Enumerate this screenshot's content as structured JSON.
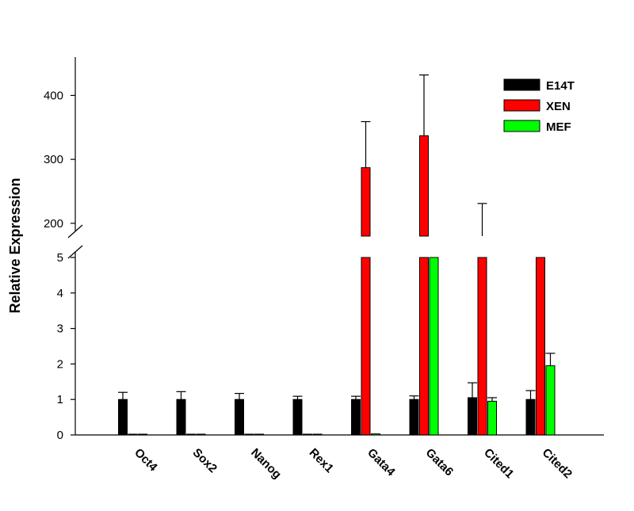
{
  "chart_data": {
    "type": "bar",
    "ylabel": "Relative Expression",
    "xlabel": "",
    "categories": [
      "Oct4",
      "Sox2",
      "Nanog",
      "Rex1",
      "Gata4",
      "Gata6",
      "Cited1",
      "Cited2"
    ],
    "y_axis_break": {
      "lower_range": [
        0,
        5
      ],
      "upper_range": [
        180,
        460
      ]
    },
    "y_ticks_lower": [
      "0",
      "1",
      "2",
      "3",
      "4",
      "5"
    ],
    "y_ticks_upper": [
      "200",
      "300",
      "400"
    ],
    "series": [
      {
        "name": "E14T",
        "color": "#000000",
        "values": [
          1.0,
          1.0,
          1.0,
          1.0,
          1.0,
          1.0,
          1.05,
          1.0
        ],
        "errors": [
          0.2,
          0.22,
          0.17,
          0.09,
          0.09,
          0.1,
          0.42,
          0.25
        ]
      },
      {
        "name": "XEN",
        "color": "#ff0000",
        "values": [
          0.02,
          0.02,
          0.02,
          0.02,
          287,
          337,
          175,
          120
        ],
        "errors": [
          0,
          0,
          0,
          0,
          72,
          95,
          56,
          0
        ]
      },
      {
        "name": "MEF",
        "color": "#00ff00",
        "values": [
          0.02,
          0.02,
          0.02,
          0.02,
          0.03,
          5,
          0.95,
          1.95
        ],
        "errors": [
          0,
          0,
          0,
          0,
          0,
          0,
          0.1,
          0.35
        ]
      }
    ],
    "legend_position": "top-right",
    "grid": false
  }
}
